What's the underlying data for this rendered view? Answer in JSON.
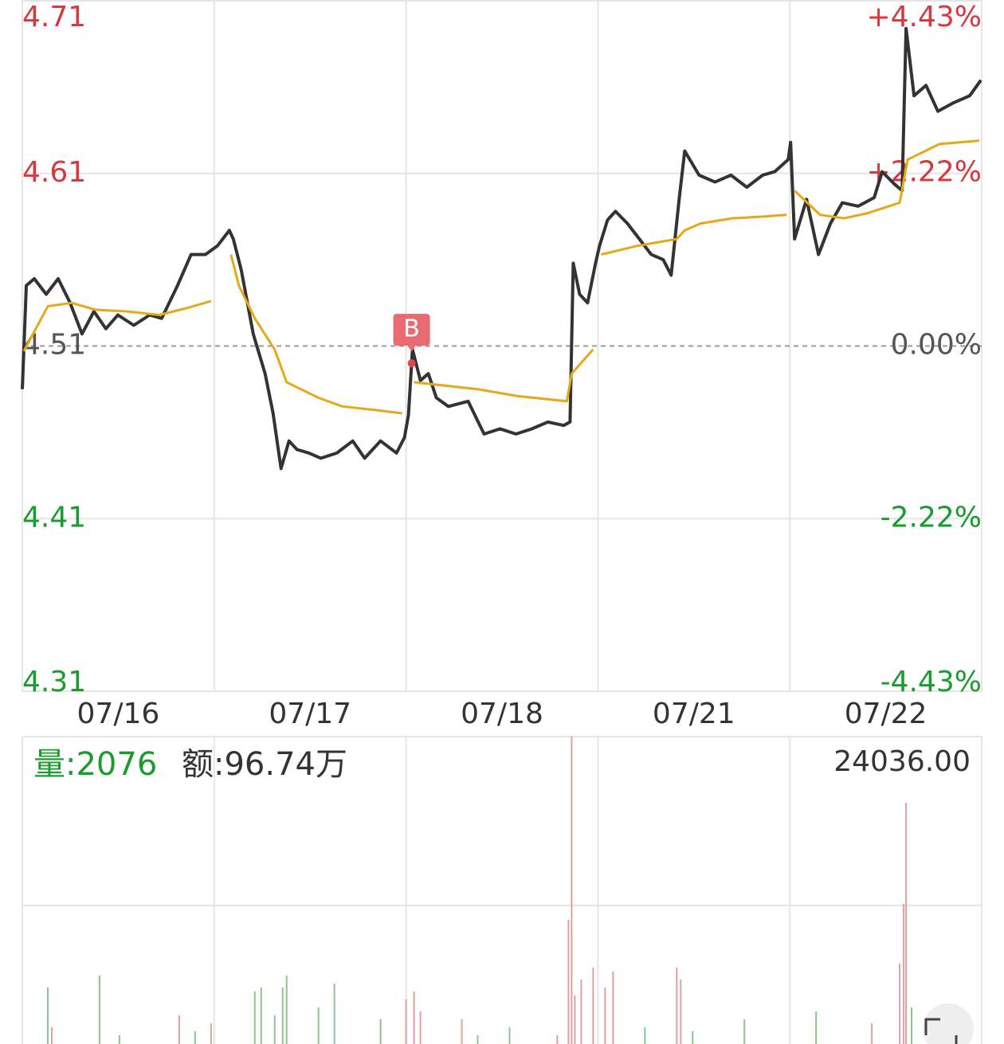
{
  "chart_data": {
    "type": "line",
    "categories": [
      "07/16",
      "07/17",
      "07/18",
      "07/21",
      "07/22"
    ],
    "xlim": [
      0,
      1205
    ],
    "ylim": [
      4.31,
      4.71
    ],
    "yticks": [
      4.71,
      4.61,
      4.51,
      4.41,
      4.31
    ],
    "ytick_colors": [
      "#d9363e",
      "#d9363e",
      "#555555",
      "#1a9b2e",
      "#1a9b2e"
    ],
    "y2lim": [
      -4.43,
      4.43
    ],
    "y2ticks": [
      {
        "value": 4.43,
        "label": "+4.43%"
      },
      {
        "value": 2.22,
        "label": "+2.22%"
      },
      {
        "value": 0,
        "label": "0.00%"
      },
      {
        "value": -2.22,
        "label": "-2.22%"
      },
      {
        "value": -4.43,
        "label": "-4.43%"
      }
    ],
    "y2tick_colors": [
      "#d9363e",
      "#d9363e",
      "#555555",
      "#1a9b2e",
      "#1a9b2e"
    ],
    "series": [
      {
        "color": "#333333",
        "x": [
          0,
          5,
          15,
          30,
          45,
          60,
          75,
          90,
          105,
          120,
          140,
          160,
          175,
          195,
          212,
          230,
          245,
          260,
          265,
          275,
          290,
          305,
          315,
          325,
          335,
          345,
          360,
          375,
          395,
          415,
          430,
          450,
          470,
          480,
          485,
          490,
          500,
          510,
          520,
          535,
          560,
          580,
          600,
          620,
          640,
          660,
          680,
          688,
          692,
          700,
          710,
          720,
          725,
          735,
          745,
          760,
          775,
          790,
          805,
          815,
          825,
          832,
          850,
          870,
          890,
          910,
          930,
          945,
          962,
          965,
          970,
          985,
          1000,
          1015,
          1030,
          1050,
          1070,
          1080,
          1095,
          1105,
          1110,
          1120,
          1135,
          1150,
          1170,
          1190,
          1204
        ],
        "values": [
          4.485,
          4.545,
          4.549,
          4.54,
          4.549,
          4.535,
          4.517,
          4.53,
          4.52,
          4.528,
          4.522,
          4.528,
          4.526,
          4.545,
          4.563,
          4.563,
          4.568,
          4.577,
          4.572,
          4.554,
          4.517,
          4.494,
          4.471,
          4.439,
          4.455,
          4.45,
          4.448,
          4.445,
          4.448,
          4.455,
          4.445,
          4.455,
          4.448,
          4.457,
          4.47,
          4.508,
          4.49,
          4.494,
          4.48,
          4.475,
          4.478,
          4.459,
          4.462,
          4.459,
          4.462,
          4.466,
          4.464,
          4.466,
          4.558,
          4.54,
          4.535,
          4.558,
          4.568,
          4.583,
          4.588,
          4.581,
          4.572,
          4.563,
          4.56,
          4.551,
          4.595,
          4.623,
          4.609,
          4.605,
          4.609,
          4.602,
          4.609,
          4.611,
          4.618,
          4.628,
          4.572,
          4.595,
          4.563,
          4.581,
          4.593,
          4.591,
          4.596,
          4.611,
          4.604,
          4.6,
          4.694,
          4.655,
          4.661,
          4.646,
          4.651,
          4.655,
          4.664
        ]
      },
      {
        "color": "#e6a817",
        "x": [
          2,
          32,
          62,
          92,
          132,
          172,
          207,
          237,
          250,
          262,
          272,
          292,
          317,
          332,
          372,
          402,
          442,
          477,
          480,
          492,
          532,
          572,
          622,
          684,
          690,
          717,
          720,
          727,
          772,
          822,
          832,
          852,
          892,
          932,
          960,
          965,
          970,
          1002,
          1032,
          1062,
          1082,
          1102,
          1112,
          1152,
          1202
        ],
        "values": [
          4.507,
          4.533,
          4.535,
          4.531,
          4.53,
          4.528,
          4.532,
          4.536,
          null,
          4.563,
          4.545,
          4.526,
          4.508,
          4.489,
          4.48,
          4.475,
          4.473,
          4.471,
          null,
          4.489,
          4.487,
          4.485,
          4.481,
          4.478,
          4.494,
          4.508,
          null,
          4.563,
          4.568,
          4.572,
          4.577,
          4.581,
          4.584,
          4.585,
          4.586,
          null,
          4.6,
          4.586,
          4.584,
          4.587,
          4.59,
          4.593,
          4.618,
          4.627,
          4.629
        ]
      }
    ],
    "annotations": [
      {
        "label": "B",
        "x": 489,
        "value": 4.5
      }
    ],
    "volume": {
      "volume_label": "量:2076",
      "amount_label": "额:96.74万",
      "ylim": [
        0,
        24036
      ],
      "yticks": [
        {
          "value": 24036,
          "label": "24036.00"
        }
      ],
      "x": [
        32,
        37,
        97,
        122,
        197,
        217,
        237,
        292,
        300,
        317,
        327,
        332,
        372,
        392,
        450,
        482,
        492,
        500,
        552,
        572,
        612,
        672,
        686,
        690,
        694,
        702,
        717,
        732,
        742,
        782,
        822,
        827,
        842,
        907,
        997,
        1067,
        1102,
        1107,
        1110,
        1117
      ],
      "values": [
        6179,
        3345,
        7029,
        2778,
        4195,
        3061,
        3628,
        5896,
        6179,
        4195,
        6179,
        7029,
        4762,
        6463,
        3912,
        5329,
        5896,
        4479,
        3912,
        2778,
        3345,
        2778,
        10998,
        24036,
        5612,
        6746,
        7596,
        6179,
        7313,
        3345,
        7596,
        6746,
        3061,
        3912,
        4479,
        3628,
        7880,
        12132,
        19331,
        4762
      ],
      "colors": [
        "#8cc68c",
        "#e0a0a0",
        "#8cc68c",
        "#8cc68c",
        "#e0a0a0",
        "#8cc68c",
        "#e0a0a0",
        "#8cc68c",
        "#8cc68c",
        "#8cc68c",
        "#8cc68c",
        "#8cc68c",
        "#8cc68c",
        "#8cc68c",
        "#8cc68c",
        "#e0a0a0",
        "#e0a0a0",
        "#e0a0a0",
        "#e0a0a0",
        "#8cc68c",
        "#8cc68c",
        "#e0a0a0",
        "#e0a0a0",
        "#e0a0a0",
        "#e0a0a0",
        "#e0a0a0",
        "#e0a0a0",
        "#e0a0a0",
        "#e0a0a0",
        "#8cc68c",
        "#e0a0a0",
        "#e0a0a0",
        "#8cc68c",
        "#8cc68c",
        "#8cc68c",
        "#e0a0a0",
        "#e0a0a0",
        "#e0a0a0",
        "#e0a0a0",
        "#8cc68c"
      ]
    }
  }
}
